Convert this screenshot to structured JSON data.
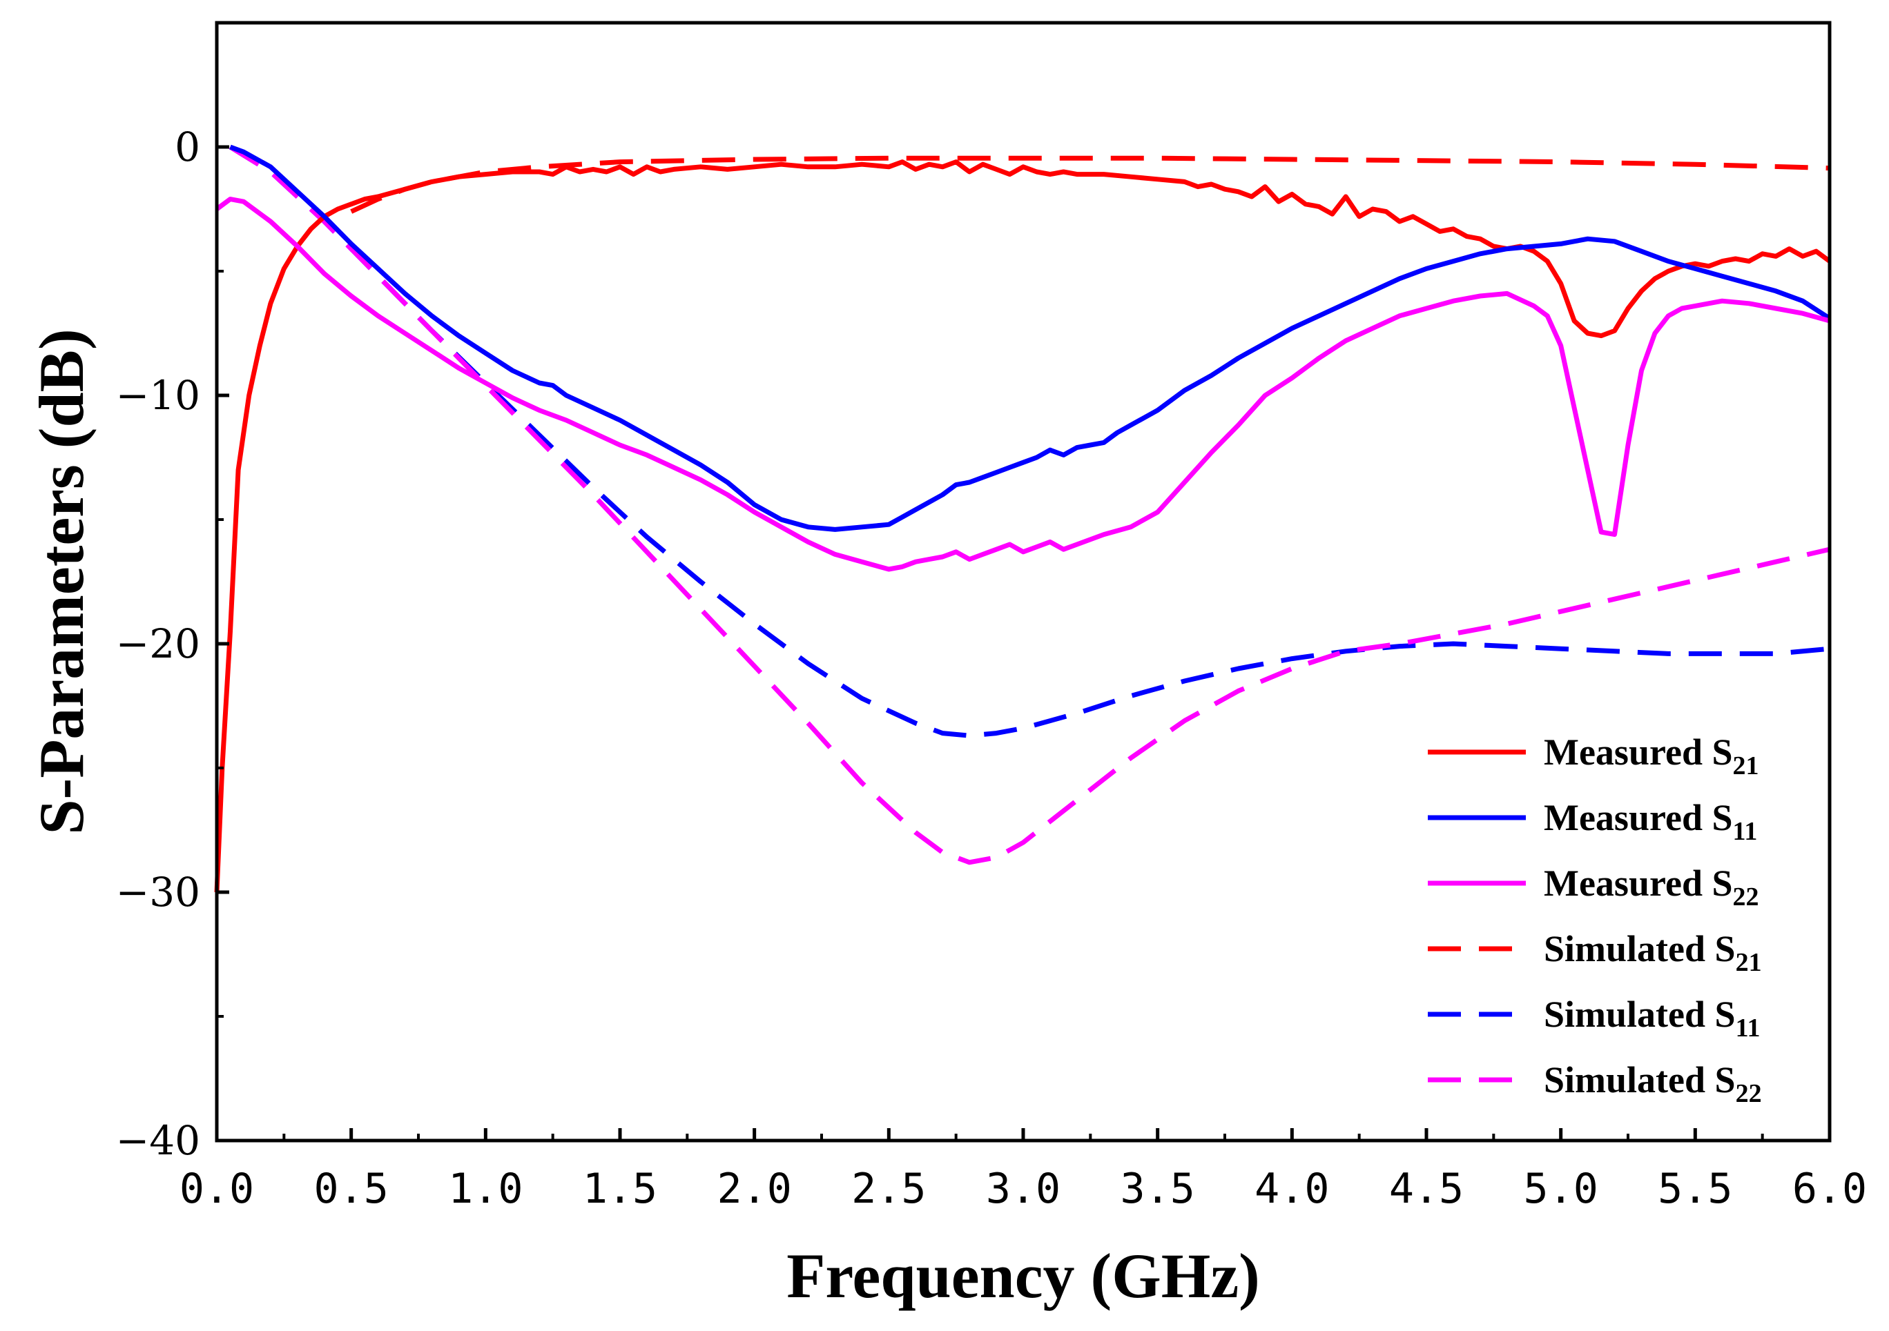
{
  "chart_data": {
    "type": "line",
    "title": "",
    "xlabel": "Frequency (GHz)",
    "ylabel": "S-Parameters (dB)",
    "xlim": [
      0,
      6
    ],
    "ylim": [
      -40,
      5
    ],
    "xticks": [
      "0.0",
      "0.5",
      "1.0",
      "1.5",
      "2.0",
      "2.5",
      "3.0",
      "3.5",
      "4.0",
      "4.5",
      "5.0",
      "5.5",
      "6.0"
    ],
    "xtick_values": [
      0,
      0.5,
      1.0,
      1.5,
      2.0,
      2.5,
      3.0,
      3.5,
      4.0,
      4.5,
      5.0,
      5.5,
      6.0
    ],
    "yticks": [
      "0",
      "−10",
      "−20",
      "−30",
      "−40"
    ],
    "ytick_values": [
      0,
      -10,
      -20,
      -30,
      -40
    ],
    "legend_position": "bottom-right",
    "series": [
      {
        "name": "Measured S21",
        "label_main": "Measured S",
        "label_sub": "21",
        "color": "#ff0000",
        "dash": "solid",
        "x": [
          0.0,
          0.02,
          0.05,
          0.08,
          0.12,
          0.16,
          0.2,
          0.25,
          0.3,
          0.35,
          0.4,
          0.45,
          0.5,
          0.55,
          0.6,
          0.7,
          0.8,
          0.9,
          1.0,
          1.1,
          1.2,
          1.25,
          1.3,
          1.35,
          1.4,
          1.45,
          1.5,
          1.55,
          1.6,
          1.65,
          1.7,
          1.8,
          1.9,
          2.0,
          2.1,
          2.2,
          2.3,
          2.4,
          2.5,
          2.55,
          2.6,
          2.65,
          2.7,
          2.75,
          2.8,
          2.85,
          2.9,
          2.95,
          3.0,
          3.05,
          3.1,
          3.15,
          3.2,
          3.3,
          3.4,
          3.5,
          3.6,
          3.65,
          3.7,
          3.75,
          3.8,
          3.85,
          3.9,
          3.95,
          4.0,
          4.05,
          4.1,
          4.15,
          4.2,
          4.25,
          4.3,
          4.35,
          4.4,
          4.45,
          4.5,
          4.55,
          4.6,
          4.65,
          4.7,
          4.75,
          4.8,
          4.85,
          4.9,
          4.95,
          5.0,
          5.05,
          5.1,
          5.15,
          5.2,
          5.25,
          5.3,
          5.35,
          5.4,
          5.45,
          5.5,
          5.55,
          5.6,
          5.65,
          5.7,
          5.75,
          5.8,
          5.85,
          5.9,
          5.95,
          6.0
        ],
        "y": [
          -30,
          -25,
          -19.5,
          -13,
          -10,
          -8,
          -6.3,
          -4.9,
          -4.0,
          -3.3,
          -2.8,
          -2.5,
          -2.3,
          -2.1,
          -2.0,
          -1.7,
          -1.4,
          -1.2,
          -1.1,
          -1.0,
          -1.0,
          -1.1,
          -0.8,
          -1.0,
          -0.9,
          -1.0,
          -0.8,
          -1.1,
          -0.8,
          -1.0,
          -0.9,
          -0.8,
          -0.9,
          -0.8,
          -0.7,
          -0.8,
          -0.8,
          -0.7,
          -0.8,
          -0.6,
          -0.9,
          -0.7,
          -0.8,
          -0.6,
          -1.0,
          -0.7,
          -0.9,
          -1.1,
          -0.8,
          -1.0,
          -1.1,
          -1.0,
          -1.1,
          -1.1,
          -1.2,
          -1.3,
          -1.4,
          -1.6,
          -1.5,
          -1.7,
          -1.8,
          -2.0,
          -1.6,
          -2.2,
          -1.9,
          -2.3,
          -2.4,
          -2.7,
          -2.0,
          -2.8,
          -2.5,
          -2.6,
          -3.0,
          -2.8,
          -3.1,
          -3.4,
          -3.3,
          -3.6,
          -3.7,
          -4.0,
          -4.1,
          -4.0,
          -4.2,
          -4.6,
          -5.5,
          -7.0,
          -7.5,
          -7.6,
          -7.4,
          -6.5,
          -5.8,
          -5.3,
          -5.0,
          -4.8,
          -4.7,
          -4.8,
          -4.6,
          -4.5,
          -4.6,
          -4.3,
          -4.4,
          -4.1,
          -4.4,
          -4.2,
          -4.6
        ]
      },
      {
        "name": "Measured S11",
        "label_main": "Measured S",
        "label_sub": "11",
        "color": "#0000ff",
        "dash": "solid",
        "x": [
          0.05,
          0.1,
          0.2,
          0.3,
          0.4,
          0.5,
          0.6,
          0.7,
          0.8,
          0.9,
          1.0,
          1.1,
          1.2,
          1.25,
          1.3,
          1.4,
          1.5,
          1.6,
          1.7,
          1.8,
          1.9,
          2.0,
          2.1,
          2.2,
          2.3,
          2.4,
          2.5,
          2.55,
          2.6,
          2.65,
          2.7,
          2.75,
          2.8,
          2.85,
          2.9,
          2.95,
          3.0,
          3.05,
          3.1,
          3.15,
          3.2,
          3.25,
          3.3,
          3.35,
          3.4,
          3.5,
          3.6,
          3.7,
          3.8,
          3.9,
          4.0,
          4.1,
          4.2,
          4.3,
          4.4,
          4.5,
          4.6,
          4.7,
          4.8,
          4.9,
          5.0,
          5.05,
          5.1,
          5.2,
          5.3,
          5.4,
          5.5,
          5.6,
          5.7,
          5.8,
          5.9,
          6.0
        ],
        "y": [
          0,
          -0.2,
          -0.8,
          -1.8,
          -2.8,
          -3.9,
          -4.9,
          -5.9,
          -6.8,
          -7.6,
          -8.3,
          -9.0,
          -9.5,
          -9.6,
          -10.0,
          -10.5,
          -11.0,
          -11.6,
          -12.2,
          -12.8,
          -13.5,
          -14.4,
          -15.0,
          -15.3,
          -15.4,
          -15.3,
          -15.2,
          -14.9,
          -14.6,
          -14.3,
          -14.0,
          -13.6,
          -13.5,
          -13.3,
          -13.1,
          -12.9,
          -12.7,
          -12.5,
          -12.2,
          -12.4,
          -12.1,
          -12.0,
          -11.9,
          -11.5,
          -11.2,
          -10.6,
          -9.8,
          -9.2,
          -8.5,
          -7.9,
          -7.3,
          -6.8,
          -6.3,
          -5.8,
          -5.3,
          -4.9,
          -4.6,
          -4.3,
          -4.1,
          -4.0,
          -3.9,
          -3.8,
          -3.7,
          -3.8,
          -4.2,
          -4.6,
          -4.9,
          -5.2,
          -5.5,
          -5.8,
          -6.2,
          -6.9
        ]
      },
      {
        "name": "Measured S22",
        "label_main": "Measured S",
        "label_sub": "22",
        "color": "#ff00ff",
        "dash": "solid",
        "x": [
          0.0,
          0.05,
          0.1,
          0.2,
          0.3,
          0.4,
          0.5,
          0.6,
          0.7,
          0.8,
          0.9,
          1.0,
          1.1,
          1.2,
          1.3,
          1.4,
          1.5,
          1.6,
          1.7,
          1.8,
          1.9,
          2.0,
          2.1,
          2.2,
          2.3,
          2.4,
          2.5,
          2.55,
          2.6,
          2.65,
          2.7,
          2.75,
          2.8,
          2.85,
          2.9,
          2.95,
          3.0,
          3.05,
          3.1,
          3.15,
          3.2,
          3.3,
          3.4,
          3.5,
          3.6,
          3.7,
          3.8,
          3.9,
          4.0,
          4.1,
          4.2,
          4.3,
          4.4,
          4.5,
          4.6,
          4.7,
          4.8,
          4.9,
          4.95,
          5.0,
          5.05,
          5.1,
          5.15,
          5.2,
          5.25,
          5.3,
          5.35,
          5.4,
          5.45,
          5.5,
          5.6,
          5.7,
          5.8,
          5.9,
          6.0
        ],
        "y": [
          -2.5,
          -2.1,
          -2.2,
          -3.0,
          -4.0,
          -5.1,
          -6.0,
          -6.8,
          -7.5,
          -8.2,
          -8.9,
          -9.5,
          -10.1,
          -10.6,
          -11.0,
          -11.5,
          -12.0,
          -12.4,
          -12.9,
          -13.4,
          -14.0,
          -14.7,
          -15.3,
          -15.9,
          -16.4,
          -16.7,
          -17.0,
          -16.9,
          -16.7,
          -16.6,
          -16.5,
          -16.3,
          -16.6,
          -16.4,
          -16.2,
          -16.0,
          -16.3,
          -16.1,
          -15.9,
          -16.2,
          -16.0,
          -15.6,
          -15.3,
          -14.7,
          -13.5,
          -12.3,
          -11.2,
          -10.0,
          -9.3,
          -8.5,
          -7.8,
          -7.3,
          -6.8,
          -6.5,
          -6.2,
          -6.0,
          -5.9,
          -6.4,
          -6.8,
          -8.0,
          -10.5,
          -13.0,
          -15.5,
          -15.6,
          -12.0,
          -9.0,
          -7.5,
          -6.8,
          -6.5,
          -6.4,
          -6.2,
          -6.3,
          -6.5,
          -6.7,
          -7.0
        ]
      },
      {
        "name": "Simulated S21",
        "label_main": "Simulated S",
        "label_sub": "21",
        "color": "#ff0000",
        "dash": "dashed",
        "x": [
          0.5,
          0.6,
          0.7,
          0.8,
          0.9,
          1.0,
          1.2,
          1.5,
          2.0,
          2.5,
          3.0,
          3.5,
          4.0,
          4.5,
          5.0,
          5.5,
          6.0
        ],
        "y": [
          -2.6,
          -2.1,
          -1.7,
          -1.4,
          -1.2,
          -1.0,
          -0.8,
          -0.6,
          -0.5,
          -0.45,
          -0.45,
          -0.45,
          -0.5,
          -0.55,
          -0.6,
          -0.7,
          -0.85
        ]
      },
      {
        "name": "Simulated S11",
        "label_main": "Simulated S",
        "label_sub": "11",
        "color": "#0000ff",
        "dash": "dashed",
        "x": [
          0.05,
          0.2,
          0.4,
          0.6,
          0.8,
          1.0,
          1.2,
          1.4,
          1.6,
          1.8,
          2.0,
          2.2,
          2.4,
          2.6,
          2.7,
          2.8,
          2.9,
          3.0,
          3.2,
          3.4,
          3.6,
          3.8,
          4.0,
          4.2,
          4.4,
          4.6,
          4.8,
          5.0,
          5.2,
          5.4,
          5.6,
          5.8,
          6.0
        ],
        "y": [
          0,
          -1.0,
          -3.0,
          -5.2,
          -7.4,
          -9.5,
          -11.6,
          -13.7,
          -15.7,
          -17.5,
          -19.2,
          -20.8,
          -22.2,
          -23.2,
          -23.6,
          -23.7,
          -23.6,
          -23.4,
          -22.8,
          -22.1,
          -21.5,
          -21.0,
          -20.6,
          -20.3,
          -20.1,
          -20.0,
          -20.1,
          -20.2,
          -20.3,
          -20.4,
          -20.4,
          -20.4,
          -20.2
        ]
      },
      {
        "name": "Simulated S22",
        "label_main": "Simulated S",
        "label_sub": "22",
        "color": "#ff00ff",
        "dash": "dashed",
        "x": [
          0.05,
          0.2,
          0.4,
          0.6,
          0.8,
          1.0,
          1.2,
          1.4,
          1.6,
          1.8,
          2.0,
          2.2,
          2.4,
          2.6,
          2.7,
          2.8,
          2.9,
          3.0,
          3.2,
          3.4,
          3.6,
          3.8,
          4.0,
          4.2,
          4.4,
          4.6,
          4.8,
          5.0,
          5.2,
          5.4,
          5.6,
          5.8,
          6.0
        ],
        "y": [
          0,
          -1.0,
          -3.0,
          -5.2,
          -7.4,
          -9.6,
          -11.8,
          -14.0,
          -16.3,
          -18.6,
          -20.9,
          -23.2,
          -25.6,
          -27.6,
          -28.4,
          -28.8,
          -28.6,
          -28.0,
          -26.3,
          -24.6,
          -23.1,
          -21.9,
          -21.0,
          -20.3,
          -20.0,
          -19.6,
          -19.2,
          -18.7,
          -18.2,
          -17.7,
          -17.2,
          -16.7,
          -16.2
        ]
      }
    ]
  }
}
